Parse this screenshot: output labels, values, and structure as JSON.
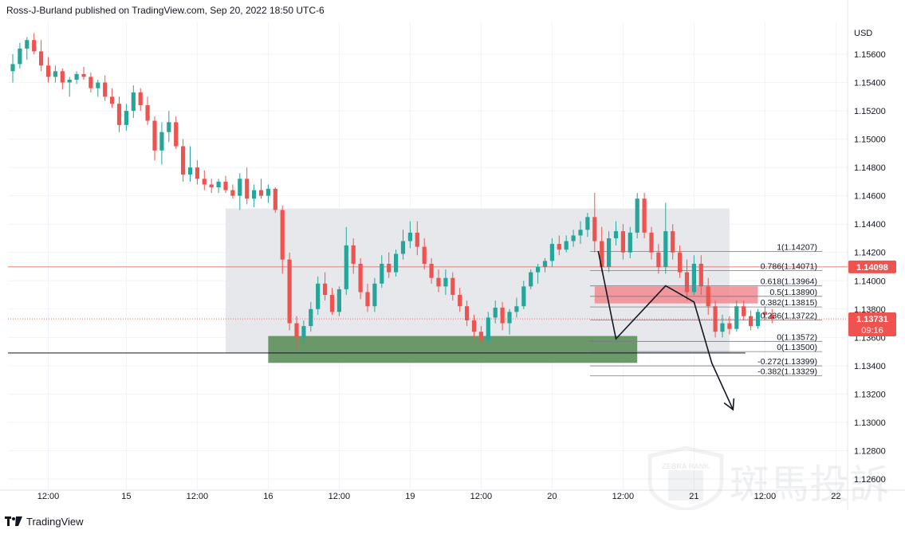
{
  "header": {
    "text": "Ross-J-Burland published on TradingView.com, Sep 20, 2022 18:50 UTC-6"
  },
  "footer": {
    "brand": "TradingView"
  },
  "watermark": {
    "brand": "ZEBRA RANK",
    "cjk": "斑馬投訴"
  },
  "colors": {
    "up": "#26a69a",
    "down": "#ef5350",
    "range_box": "#e4e5ea",
    "support_zone": "#5d8f5b",
    "resistance_zone": "#f08a8f",
    "price_tag": "#ef5350"
  },
  "chart_data": {
    "type": "candlestick",
    "symbol_unit": "USD",
    "ylim": [
      1.1255,
      1.158
    ],
    "y_ticks": [
      1.156,
      1.154,
      1.152,
      1.15,
      1.148,
      1.146,
      1.144,
      1.142,
      1.14,
      1.138,
      1.136,
      1.134,
      1.132,
      1.13,
      1.128,
      1.126
    ],
    "y_tick_labels": [
      "1.15600",
      "1.15400",
      "1.15200",
      "1.15000",
      "1.14800",
      "1.14600",
      "1.14400",
      "1.14200",
      "1.14000",
      "1.13800",
      "1.13600",
      "1.13400",
      "1.13200",
      "1.13000",
      "1.12800",
      "1.12600"
    ],
    "x_ticks": [
      {
        "label": "12:00",
        "slot": 5
      },
      {
        "label": "15",
        "slot": 16
      },
      {
        "label": "12:00",
        "slot": 26
      },
      {
        "label": "16",
        "slot": 36
      },
      {
        "label": "12:00",
        "slot": 46
      },
      {
        "label": "19",
        "slot": 56
      },
      {
        "label": "12:00",
        "slot": 66
      },
      {
        "label": "20",
        "slot": 76
      },
      {
        "label": "12:00",
        "slot": 86
      },
      {
        "label": "21",
        "slot": 96
      },
      {
        "label": "12:00",
        "slot": 106
      },
      {
        "label": "22",
        "slot": 116
      }
    ],
    "current_price": {
      "value": 1.13731,
      "label": "1.13731",
      "countdown": "09:16"
    },
    "marked_level": {
      "value": 1.14098,
      "label": "1.14098"
    },
    "support_line": 1.1349,
    "range_box": {
      "from_slot": 30,
      "to_slot": 101,
      "top": 1.1451,
      "bottom": 1.1349
    },
    "support_zone": {
      "from_slot": 36,
      "to_slot": 88,
      "top": 1.1361,
      "bottom": 1.1342
    },
    "resistance_zone": {
      "from_slot": 82,
      "to_slot": 105,
      "top": 1.1396,
      "bottom": 1.1384
    },
    "fib_levels": [
      {
        "label": "1(1.14207)",
        "value": 1.14207
      },
      {
        "label": "0.786(1.14071)",
        "value": 1.14071
      },
      {
        "label": "0.618(1.13964)",
        "value": 1.13964
      },
      {
        "label": "0.5(1.13890)",
        "value": 1.1389
      },
      {
        "label": "0.382(1.13815)",
        "value": 1.13815
      },
      {
        "label": "0.236(1.13722)",
        "value": 1.13722
      },
      {
        "label": "0(1.13572)",
        "value": 1.13572
      },
      {
        "label": "0(1.13500)",
        "value": 1.135
      },
      {
        "label": "-0.272(1.13399)",
        "value": 1.13399
      },
      {
        "label": "-0.382(1.13329)",
        "value": 1.13329
      }
    ],
    "projection_path": [
      {
        "slot": 82.5,
        "price": 1.1421
      },
      {
        "slot": 85,
        "price": 1.1359
      },
      {
        "slot": 92,
        "price": 1.13965
      },
      {
        "slot": 96,
        "price": 1.1385
      },
      {
        "slot": 98.5,
        "price": 1.1342
      },
      {
        "slot": 101.5,
        "price": 1.1309
      }
    ],
    "candles": [
      {
        "o": 1.1548,
        "h": 1.156,
        "l": 1.154,
        "c": 1.1553
      },
      {
        "o": 1.1553,
        "h": 1.1568,
        "l": 1.155,
        "c": 1.1564
      },
      {
        "o": 1.1564,
        "h": 1.1572,
        "l": 1.1556,
        "c": 1.157
      },
      {
        "o": 1.157,
        "h": 1.1575,
        "l": 1.156,
        "c": 1.1562
      },
      {
        "o": 1.1562,
        "h": 1.157,
        "l": 1.1548,
        "c": 1.1552
      },
      {
        "o": 1.1552,
        "h": 1.1558,
        "l": 1.154,
        "c": 1.1544
      },
      {
        "o": 1.1544,
        "h": 1.1552,
        "l": 1.154,
        "c": 1.1548
      },
      {
        "o": 1.1548,
        "h": 1.155,
        "l": 1.1535,
        "c": 1.154
      },
      {
        "o": 1.154,
        "h": 1.1544,
        "l": 1.153,
        "c": 1.1542
      },
      {
        "o": 1.1542,
        "h": 1.1548,
        "l": 1.1539,
        "c": 1.1546
      },
      {
        "o": 1.1546,
        "h": 1.1551,
        "l": 1.1542,
        "c": 1.1544
      },
      {
        "o": 1.1544,
        "h": 1.1547,
        "l": 1.1533,
        "c": 1.1536
      },
      {
        "o": 1.1536,
        "h": 1.1542,
        "l": 1.153,
        "c": 1.154
      },
      {
        "o": 1.154,
        "h": 1.1545,
        "l": 1.1527,
        "c": 1.153
      },
      {
        "o": 1.153,
        "h": 1.1536,
        "l": 1.1522,
        "c": 1.1525
      },
      {
        "o": 1.1525,
        "h": 1.153,
        "l": 1.1505,
        "c": 1.151
      },
      {
        "o": 1.151,
        "h": 1.1525,
        "l": 1.1506,
        "c": 1.152
      },
      {
        "o": 1.152,
        "h": 1.1538,
        "l": 1.1515,
        "c": 1.1533
      },
      {
        "o": 1.1533,
        "h": 1.1536,
        "l": 1.152,
        "c": 1.1524
      },
      {
        "o": 1.1524,
        "h": 1.153,
        "l": 1.151,
        "c": 1.1513
      },
      {
        "o": 1.1513,
        "h": 1.1516,
        "l": 1.1485,
        "c": 1.1492
      },
      {
        "o": 1.1492,
        "h": 1.1512,
        "l": 1.1482,
        "c": 1.1505
      },
      {
        "o": 1.1505,
        "h": 1.152,
        "l": 1.1498,
        "c": 1.1512
      },
      {
        "o": 1.1512,
        "h": 1.1516,
        "l": 1.1493,
        "c": 1.1495
      },
      {
        "o": 1.1495,
        "h": 1.15,
        "l": 1.147,
        "c": 1.1475
      },
      {
        "o": 1.1475,
        "h": 1.1495,
        "l": 1.147,
        "c": 1.148
      },
      {
        "o": 1.148,
        "h": 1.1485,
        "l": 1.1468,
        "c": 1.1472
      },
      {
        "o": 1.1472,
        "h": 1.1478,
        "l": 1.1464,
        "c": 1.1468
      },
      {
        "o": 1.1468,
        "h": 1.1472,
        "l": 1.1462,
        "c": 1.1466
      },
      {
        "o": 1.1466,
        "h": 1.1472,
        "l": 1.1462,
        "c": 1.147
      },
      {
        "o": 1.147,
        "h": 1.1474,
        "l": 1.1462,
        "c": 1.1464
      },
      {
        "o": 1.1464,
        "h": 1.1468,
        "l": 1.1458,
        "c": 1.146
      },
      {
        "o": 1.146,
        "h": 1.1476,
        "l": 1.145,
        "c": 1.1472
      },
      {
        "o": 1.1472,
        "h": 1.148,
        "l": 1.1454,
        "c": 1.1458
      },
      {
        "o": 1.1458,
        "h": 1.1468,
        "l": 1.1452,
        "c": 1.1464
      },
      {
        "o": 1.1464,
        "h": 1.1472,
        "l": 1.1458,
        "c": 1.146
      },
      {
        "o": 1.146,
        "h": 1.1468,
        "l": 1.1455,
        "c": 1.1465
      },
      {
        "o": 1.1465,
        "h": 1.1466,
        "l": 1.1448,
        "c": 1.145
      },
      {
        "o": 1.145,
        "h": 1.1453,
        "l": 1.1405,
        "c": 1.1415
      },
      {
        "o": 1.1415,
        "h": 1.142,
        "l": 1.1365,
        "c": 1.137
      },
      {
        "o": 1.137,
        "h": 1.1375,
        "l": 1.1352,
        "c": 1.136
      },
      {
        "o": 1.136,
        "h": 1.1372,
        "l": 1.1356,
        "c": 1.1368
      },
      {
        "o": 1.1368,
        "h": 1.1385,
        "l": 1.1364,
        "c": 1.138
      },
      {
        "o": 1.138,
        "h": 1.1403,
        "l": 1.1376,
        "c": 1.1398
      },
      {
        "o": 1.1398,
        "h": 1.1406,
        "l": 1.1386,
        "c": 1.139
      },
      {
        "o": 1.139,
        "h": 1.1395,
        "l": 1.1376,
        "c": 1.1378
      },
      {
        "o": 1.1378,
        "h": 1.1396,
        "l": 1.1375,
        "c": 1.1394
      },
      {
        "o": 1.1394,
        "h": 1.1438,
        "l": 1.139,
        "c": 1.1425
      },
      {
        "o": 1.1425,
        "h": 1.143,
        "l": 1.1405,
        "c": 1.1412
      },
      {
        "o": 1.1412,
        "h": 1.1416,
        "l": 1.1387,
        "c": 1.1392
      },
      {
        "o": 1.1392,
        "h": 1.1398,
        "l": 1.1378,
        "c": 1.1382
      },
      {
        "o": 1.1382,
        "h": 1.1402,
        "l": 1.1378,
        "c": 1.1398
      },
      {
        "o": 1.1398,
        "h": 1.1418,
        "l": 1.1395,
        "c": 1.1412
      },
      {
        "o": 1.1412,
        "h": 1.142,
        "l": 1.1402,
        "c": 1.1406
      },
      {
        "o": 1.1406,
        "h": 1.1422,
        "l": 1.1403,
        "c": 1.1419
      },
      {
        "o": 1.1419,
        "h": 1.1436,
        "l": 1.1415,
        "c": 1.1428
      },
      {
        "o": 1.1428,
        "h": 1.1442,
        "l": 1.1423,
        "c": 1.1434
      },
      {
        "o": 1.1434,
        "h": 1.1442,
        "l": 1.1418,
        "c": 1.1424
      },
      {
        "o": 1.1424,
        "h": 1.143,
        "l": 1.1408,
        "c": 1.1412
      },
      {
        "o": 1.1412,
        "h": 1.1416,
        "l": 1.1398,
        "c": 1.1402
      },
      {
        "o": 1.1402,
        "h": 1.1408,
        "l": 1.1392,
        "c": 1.1396
      },
      {
        "o": 1.1396,
        "h": 1.1408,
        "l": 1.139,
        "c": 1.1402
      },
      {
        "o": 1.1402,
        "h": 1.1406,
        "l": 1.1386,
        "c": 1.139
      },
      {
        "o": 1.139,
        "h": 1.1395,
        "l": 1.1378,
        "c": 1.1382
      },
      {
        "o": 1.1382,
        "h": 1.1386,
        "l": 1.1368,
        "c": 1.1372
      },
      {
        "o": 1.1372,
        "h": 1.1376,
        "l": 1.136,
        "c": 1.1364
      },
      {
        "o": 1.1364,
        "h": 1.1368,
        "l": 1.1354,
        "c": 1.1358
      },
      {
        "o": 1.1358,
        "h": 1.1378,
        "l": 1.1356,
        "c": 1.1374
      },
      {
        "o": 1.1374,
        "h": 1.1386,
        "l": 1.137,
        "c": 1.1381
      },
      {
        "o": 1.1381,
        "h": 1.1385,
        "l": 1.1365,
        "c": 1.137
      },
      {
        "o": 1.137,
        "h": 1.138,
        "l": 1.1362,
        "c": 1.1378
      },
      {
        "o": 1.1378,
        "h": 1.1388,
        "l": 1.1374,
        "c": 1.1382
      },
      {
        "o": 1.1382,
        "h": 1.14,
        "l": 1.138,
        "c": 1.1396
      },
      {
        "o": 1.1396,
        "h": 1.1408,
        "l": 1.1394,
        "c": 1.1406
      },
      {
        "o": 1.1406,
        "h": 1.1412,
        "l": 1.1398,
        "c": 1.141
      },
      {
        "o": 1.141,
        "h": 1.1416,
        "l": 1.1406,
        "c": 1.1414
      },
      {
        "o": 1.1414,
        "h": 1.143,
        "l": 1.141,
        "c": 1.1426
      },
      {
        "o": 1.1426,
        "h": 1.1432,
        "l": 1.1418,
        "c": 1.1422
      },
      {
        "o": 1.1422,
        "h": 1.1432,
        "l": 1.142,
        "c": 1.1428
      },
      {
        "o": 1.1428,
        "h": 1.1436,
        "l": 1.1424,
        "c": 1.1432
      },
      {
        "o": 1.1432,
        "h": 1.1442,
        "l": 1.1426,
        "c": 1.1436
      },
      {
        "o": 1.1436,
        "h": 1.1448,
        "l": 1.1431,
        "c": 1.1445
      },
      {
        "o": 1.1445,
        "h": 1.1462,
        "l": 1.142,
        "c": 1.1428
      },
      {
        "o": 1.1428,
        "h": 1.1438,
        "l": 1.1406,
        "c": 1.141
      },
      {
        "o": 1.141,
        "h": 1.1435,
        "l": 1.1406,
        "c": 1.143
      },
      {
        "o": 1.143,
        "h": 1.1442,
        "l": 1.1425,
        "c": 1.1435
      },
      {
        "o": 1.1435,
        "h": 1.144,
        "l": 1.1415,
        "c": 1.142
      },
      {
        "o": 1.142,
        "h": 1.1438,
        "l": 1.1416,
        "c": 1.1434
      },
      {
        "o": 1.1434,
        "h": 1.1462,
        "l": 1.143,
        "c": 1.1458
      },
      {
        "o": 1.1458,
        "h": 1.1462,
        "l": 1.143,
        "c": 1.1434
      },
      {
        "o": 1.1434,
        "h": 1.1438,
        "l": 1.1415,
        "c": 1.142
      },
      {
        "o": 1.142,
        "h": 1.1426,
        "l": 1.1405,
        "c": 1.141
      },
      {
        "o": 1.141,
        "h": 1.1455,
        "l": 1.1405,
        "c": 1.1435
      },
      {
        "o": 1.1435,
        "h": 1.144,
        "l": 1.1415,
        "c": 1.142
      },
      {
        "o": 1.142,
        "h": 1.1425,
        "l": 1.1402,
        "c": 1.1406
      },
      {
        "o": 1.1406,
        "h": 1.1415,
        "l": 1.1386,
        "c": 1.1392
      },
      {
        "o": 1.1392,
        "h": 1.1418,
        "l": 1.139,
        "c": 1.1412
      },
      {
        "o": 1.1412,
        "h": 1.1418,
        "l": 1.139,
        "c": 1.1396
      },
      {
        "o": 1.1396,
        "h": 1.1402,
        "l": 1.1376,
        "c": 1.1382
      },
      {
        "o": 1.1382,
        "h": 1.1386,
        "l": 1.136,
        "c": 1.1364
      },
      {
        "o": 1.1364,
        "h": 1.1376,
        "l": 1.136,
        "c": 1.137
      },
      {
        "o": 1.137,
        "h": 1.1375,
        "l": 1.1362,
        "c": 1.1366
      },
      {
        "o": 1.1366,
        "h": 1.1386,
        "l": 1.1364,
        "c": 1.1382
      },
      {
        "o": 1.1382,
        "h": 1.1386,
        "l": 1.1372,
        "c": 1.1375
      },
      {
        "o": 1.1375,
        "h": 1.1379,
        "l": 1.1365,
        "c": 1.1368
      },
      {
        "o": 1.1368,
        "h": 1.138,
        "l": 1.1366,
        "c": 1.1378
      },
      {
        "o": 1.1378,
        "h": 1.1382,
        "l": 1.1372,
        "c": 1.1376
      },
      {
        "o": 1.1376,
        "h": 1.138,
        "l": 1.137,
        "c": 1.13731
      }
    ]
  }
}
